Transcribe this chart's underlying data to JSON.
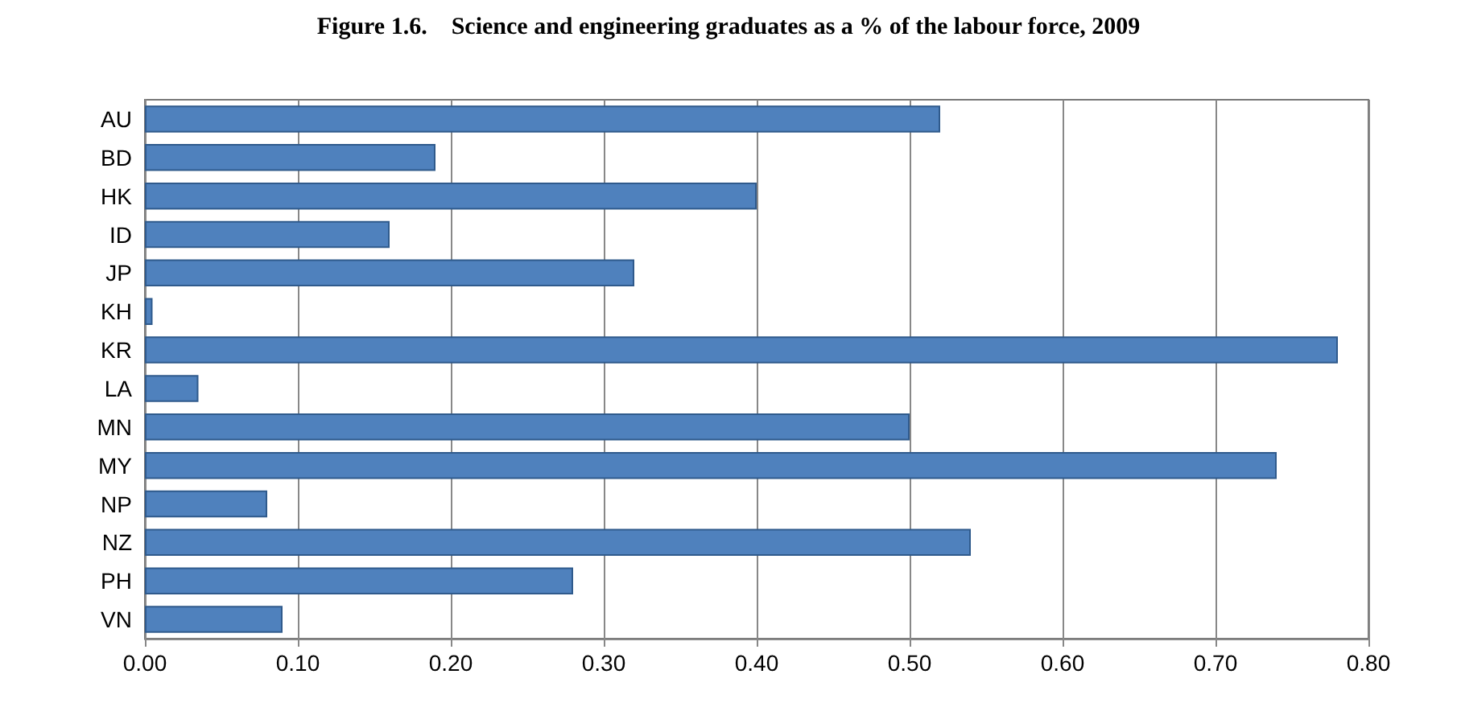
{
  "chart_data": {
    "type": "bar",
    "orientation": "horizontal",
    "title": "Figure 1.6.    Science and engineering graduates as a % of the labour force, 2009",
    "categories": [
      "AU",
      "BD",
      "HK",
      "ID",
      "JP",
      "KH",
      "KR",
      "LA",
      "MN",
      "MY",
      "NP",
      "NZ",
      "PH",
      "VN"
    ],
    "values": [
      0.52,
      0.19,
      0.4,
      0.16,
      0.32,
      0.005,
      0.78,
      0.035,
      0.5,
      0.74,
      0.08,
      0.54,
      0.28,
      0.09
    ],
    "color": "#4f81bd",
    "xlim": [
      0,
      0.8
    ],
    "xticks": [
      {
        "value": 0,
        "label": "0.00"
      },
      {
        "value": 0.1,
        "label": "0.10"
      },
      {
        "value": 0.2,
        "label": "0.20"
      },
      {
        "value": 0.3,
        "label": "0.30"
      },
      {
        "value": 0.4,
        "label": "0.40"
      },
      {
        "value": 0.5,
        "label": "0.50"
      },
      {
        "value": 0.6,
        "label": "0.60"
      },
      {
        "value": 0.7,
        "label": "0.70"
      },
      {
        "value": 0.8,
        "label": "0.80"
      }
    ],
    "grid": "x"
  }
}
